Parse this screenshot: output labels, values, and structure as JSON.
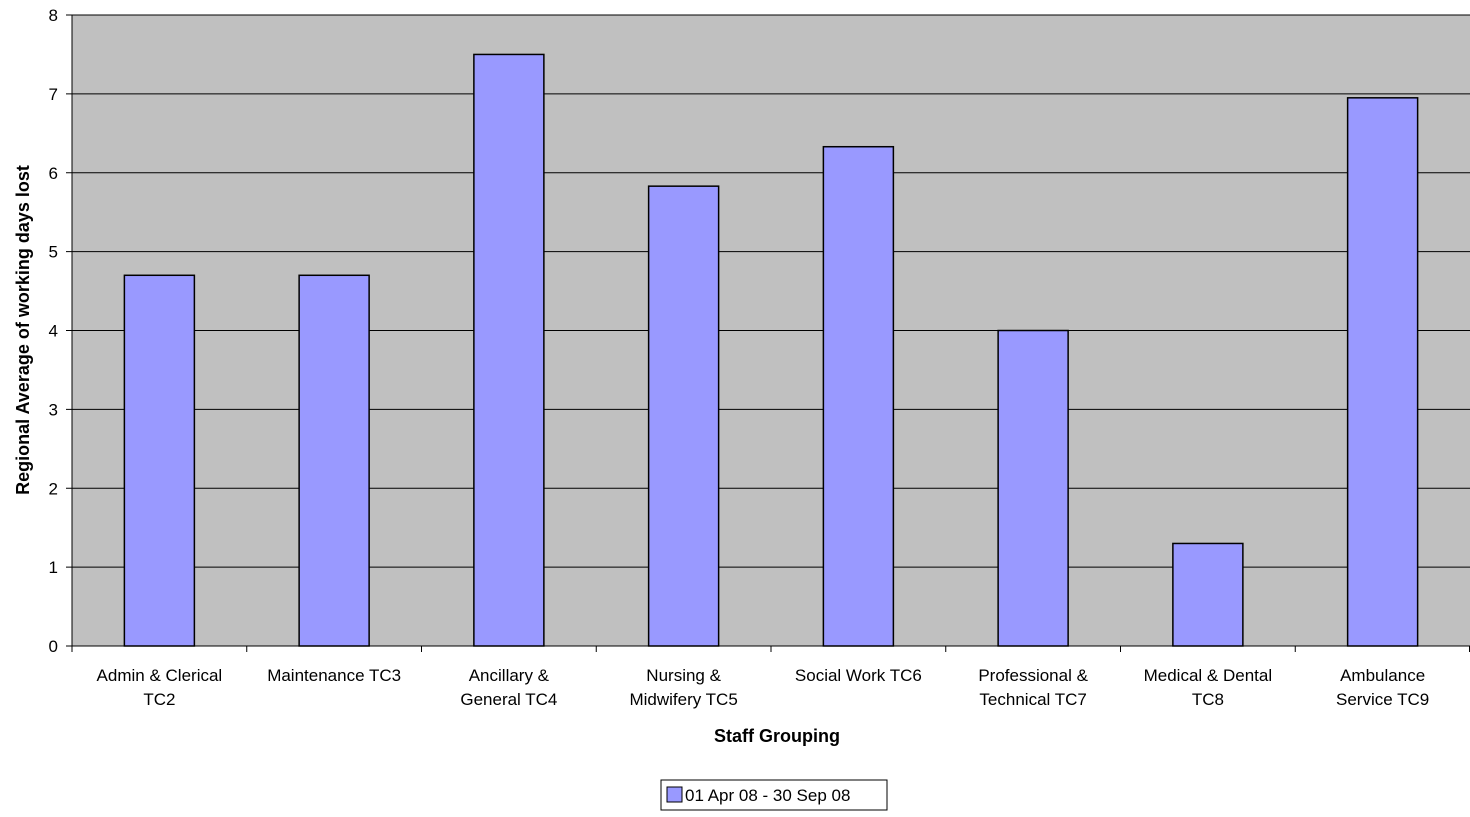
{
  "chart_data": {
    "type": "bar",
    "title": "",
    "xlabel": "Staff Grouping",
    "ylabel": "Regional Average of working days lost",
    "ylim": [
      0,
      8
    ],
    "yticks": [
      "0",
      "1",
      "2",
      "3",
      "4",
      "5",
      "6",
      "7",
      "8"
    ],
    "grid": true,
    "legend_position": "bottom",
    "categories": [
      [
        "Admin & Clerical",
        "TC2"
      ],
      [
        "Maintenance TC3"
      ],
      [
        "Ancillary &",
        "General TC4"
      ],
      [
        "Nursing &",
        "Midwifery TC5"
      ],
      [
        "Social Work TC6"
      ],
      [
        "Professional &",
        "Technical TC7"
      ],
      [
        "Medical & Dental",
        "TC8"
      ],
      [
        "Ambulance",
        "Service TC9"
      ]
    ],
    "series": [
      {
        "name": "01 Apr 08 - 30 Sep 08",
        "values": [
          4.7,
          4.7,
          7.5,
          5.83,
          6.33,
          4.0,
          1.3,
          6.95
        ]
      }
    ],
    "colors": {
      "bar_fill": "#9999ff",
      "bar_stroke": "#000000",
      "plot_background": "#c0c0c0",
      "gridline": "#000000"
    }
  }
}
